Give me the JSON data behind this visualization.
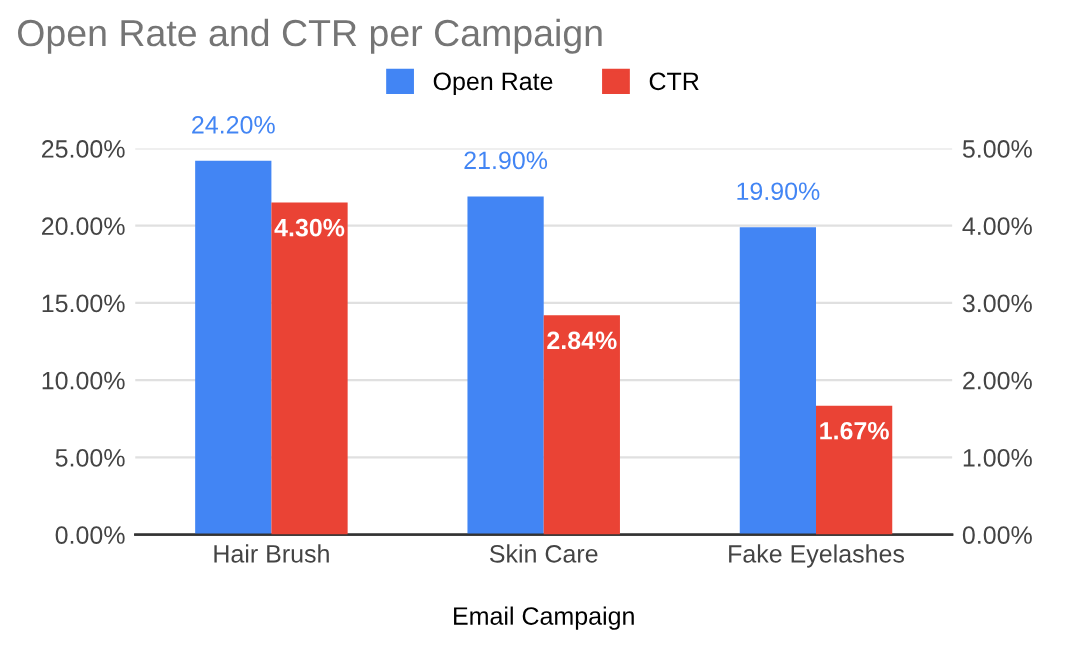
{
  "chart_data": {
    "type": "bar",
    "title": "Open Rate and CTR per Campaign",
    "xlabel": "Email Campaign",
    "categories": [
      "Hair Brush",
      "Skin Care",
      "Fake Eyelashes"
    ],
    "series": [
      {
        "name": "Open Rate",
        "color": "#4285f4",
        "values": [
          24.2,
          21.9,
          19.9
        ],
        "value_labels": [
          "24.20%",
          "21.90%",
          "19.90%"
        ]
      },
      {
        "name": "CTR",
        "color": "#ea4335",
        "axis": "y2",
        "values": [
          4.3,
          2.84,
          1.67
        ],
        "value_labels": [
          "4.30%",
          "2.84%",
          "1.67%"
        ]
      }
    ],
    "ylim": [
      0,
      25
    ],
    "yticks": [
      {
        "value": 0,
        "label": "0.00%"
      },
      {
        "value": 5,
        "label": "5.00%"
      },
      {
        "value": 10,
        "label": "10.00%"
      },
      {
        "value": 15,
        "label": "15.00%"
      },
      {
        "value": 20,
        "label": "20.00%"
      },
      {
        "value": 25,
        "label": "25.00%"
      }
    ],
    "y2lim": [
      0,
      5
    ],
    "y2ticks": [
      {
        "value": 0,
        "label": "0.00%"
      },
      {
        "value": 1,
        "label": "1.00%"
      },
      {
        "value": 2,
        "label": "2.00%"
      },
      {
        "value": 3,
        "label": "3.00%"
      },
      {
        "value": 4,
        "label": "4.00%"
      },
      {
        "value": 5,
        "label": "5.00%"
      }
    ],
    "grid": "y",
    "legend": "top"
  }
}
